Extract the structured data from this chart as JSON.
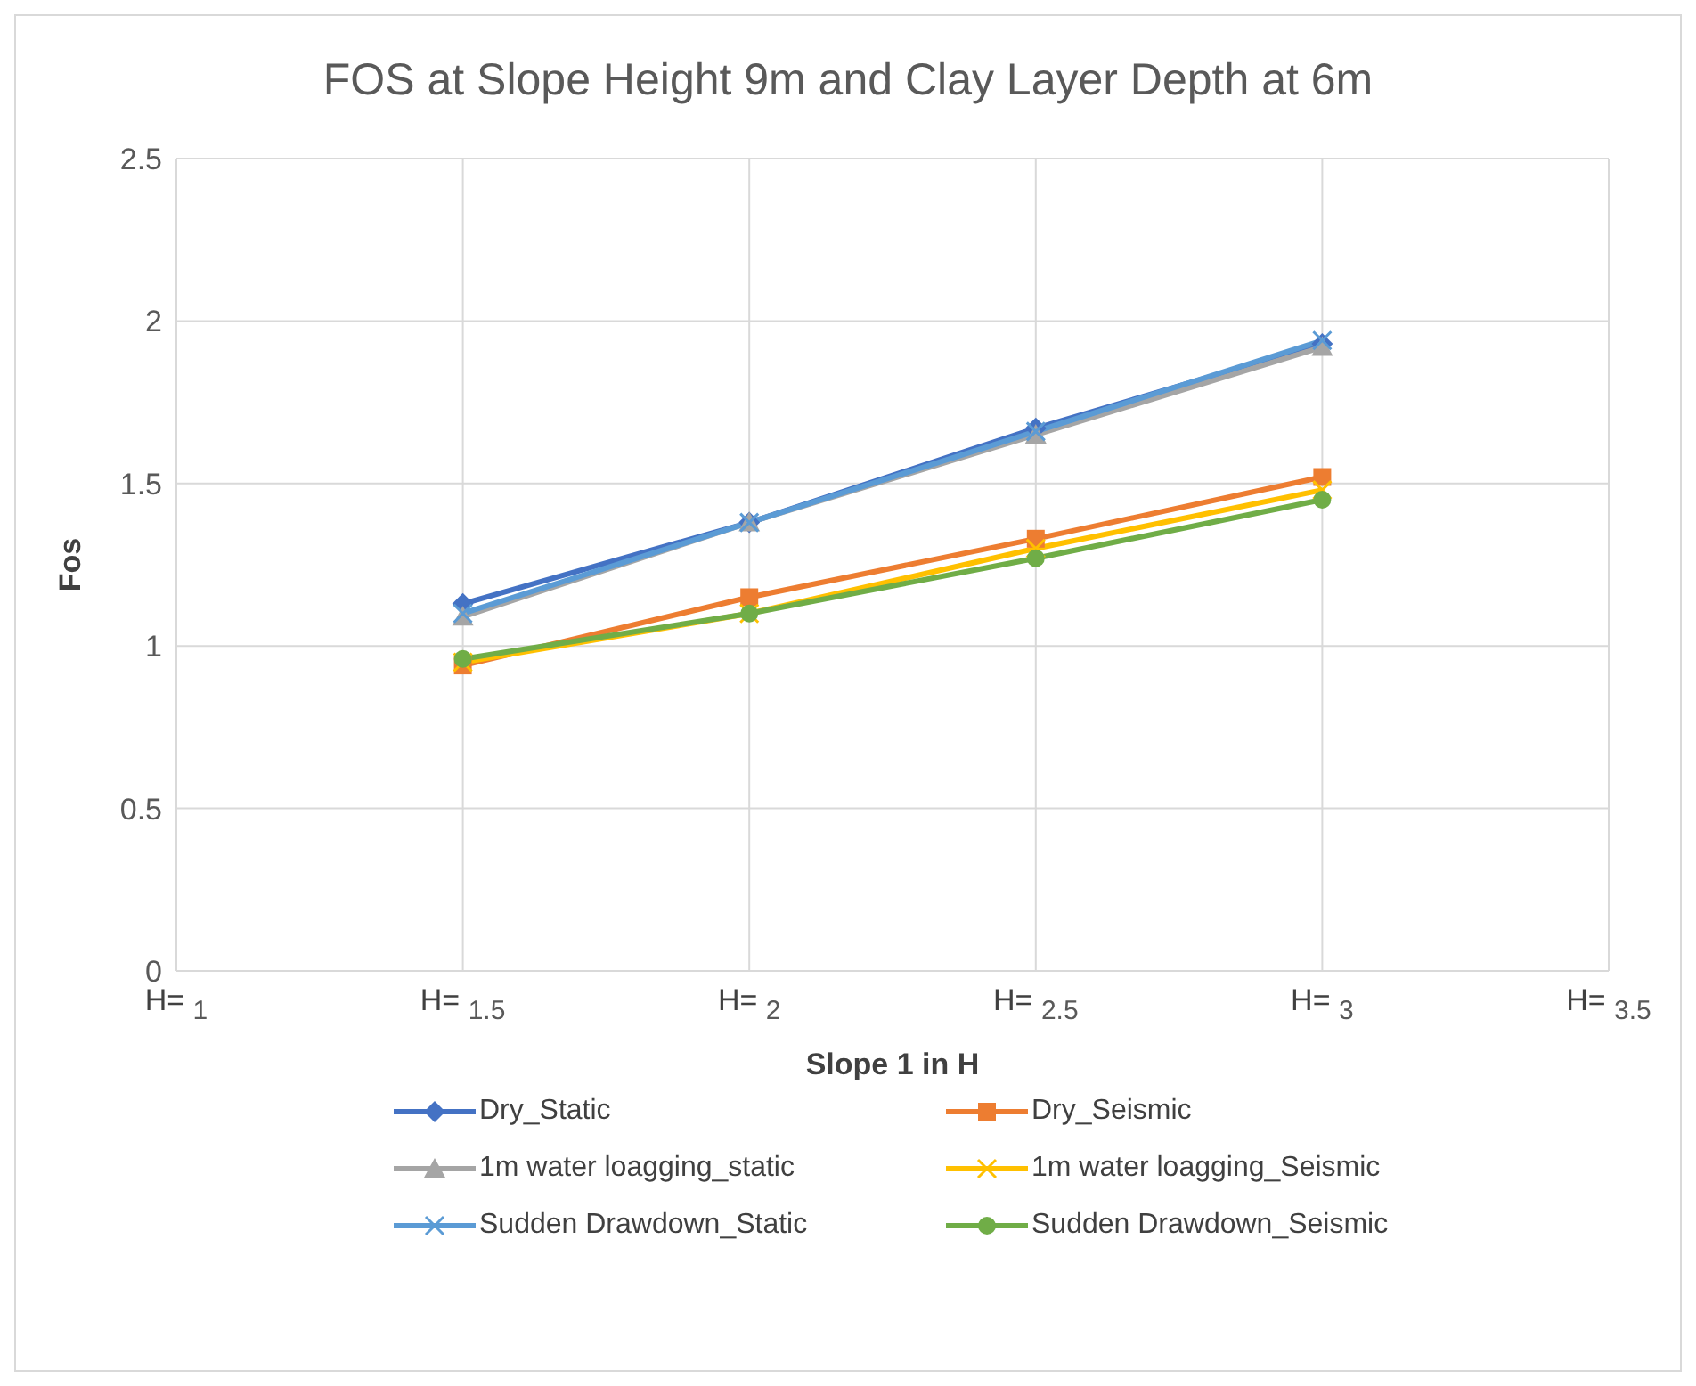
{
  "chart_data": {
    "type": "line",
    "title": "FOS at Slope Height 9m and Clay Layer Depth at 6m",
    "xlabel": "Slope 1 in H",
    "ylabel": "Fos",
    "x": [
      1.5,
      2,
      2.5,
      3
    ],
    "series": [
      {
        "name": "Dry_Static",
        "color": "#4472c4",
        "marker": "diamond",
        "values": [
          1.13,
          1.38,
          1.67,
          1.93
        ]
      },
      {
        "name": "Dry_Seismic",
        "color": "#ed7d31",
        "marker": "square",
        "values": [
          0.94,
          1.15,
          1.33,
          1.52
        ]
      },
      {
        "name": "1m water loagging_static",
        "color": "#a5a5a5",
        "marker": "triangle",
        "values": [
          1.09,
          1.38,
          1.65,
          1.92
        ]
      },
      {
        "name": "1m water loagging_Seismic",
        "color": "#ffc000",
        "marker": "cross",
        "values": [
          0.95,
          1.1,
          1.3,
          1.48
        ]
      },
      {
        "name": "Sudden Drawdown_Static",
        "color": "#5b9bd5",
        "marker": "cross",
        "values": [
          1.1,
          1.38,
          1.66,
          1.94
        ]
      },
      {
        "name": "Sudden Drawdown_Seismic",
        "color": "#70ad47",
        "marker": "circle",
        "values": [
          0.96,
          1.1,
          1.27,
          1.45
        ]
      }
    ],
    "xlim": [
      1,
      3.5
    ],
    "xticks": [
      {
        "value": 1,
        "label": "H= $_{1}$"
      },
      {
        "value": 1.5,
        "label": "H= $_{1.5}$"
      },
      {
        "value": 2,
        "label": "H= $_{2}$"
      },
      {
        "value": 2.5,
        "label": "H= $_{2.5}$"
      },
      {
        "value": 3,
        "label": "H= $_{3}$"
      },
      {
        "value": 3.5,
        "label": "H= $_{3.5}$"
      }
    ],
    "ylim": [
      0,
      2.5
    ],
    "yticks": [
      0,
      0.5,
      1,
      1.5,
      2,
      2.5
    ],
    "grid": true,
    "legend": "bottom",
    "line_style": "solid"
  }
}
